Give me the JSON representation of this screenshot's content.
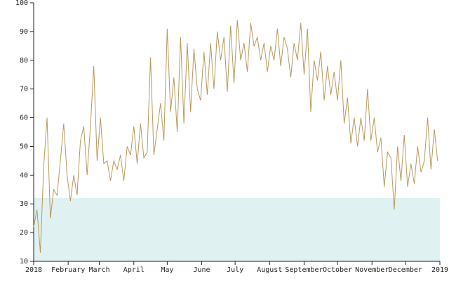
{
  "chart_data": {
    "type": "line",
    "x": [
      0,
      3,
      6,
      9,
      12,
      15,
      18,
      21,
      24,
      27,
      30,
      33,
      36,
      39,
      42,
      45,
      48,
      51,
      54,
      57,
      60,
      63,
      66,
      69,
      72,
      75,
      78,
      81,
      84,
      87,
      90,
      93,
      96,
      99,
      102,
      105,
      108,
      111,
      114,
      117,
      120,
      123,
      126,
      129,
      132,
      135,
      138,
      141,
      144,
      147,
      150,
      153,
      156,
      159,
      162,
      165,
      168,
      171,
      174,
      177,
      180,
      183,
      186,
      189,
      192,
      195,
      198,
      201,
      204,
      207,
      210,
      213,
      216,
      219,
      222,
      225,
      228,
      231,
      234,
      237,
      240,
      243,
      246,
      249,
      252,
      255,
      258,
      261,
      264,
      267,
      270,
      273,
      276,
      279,
      282,
      285,
      288,
      291,
      294,
      297,
      300,
      303,
      306,
      309,
      312,
      315,
      318,
      321,
      324,
      327,
      330,
      333,
      336,
      339,
      342,
      345,
      348,
      351,
      354,
      357,
      360,
      363
    ],
    "series": [
      {
        "color": "#b8995a",
        "values": [
          22,
          28,
          13,
          43,
          60,
          25,
          35,
          33,
          45,
          58,
          40,
          31,
          40,
          33,
          52,
          57,
          40,
          57,
          78,
          45,
          60,
          44,
          45,
          38,
          45,
          42,
          47,
          38,
          50,
          47,
          57,
          44,
          58,
          46,
          48,
          81,
          47,
          56,
          65,
          52,
          91,
          62,
          74,
          55,
          88,
          58,
          86,
          62,
          84,
          70,
          66,
          83,
          68,
          86,
          70,
          90,
          80,
          88,
          69,
          92,
          72,
          94,
          80,
          86,
          76,
          93,
          85,
          88,
          80,
          86,
          76,
          85,
          80,
          91,
          78,
          88,
          84,
          74,
          86,
          80,
          93,
          75,
          91,
          62,
          80,
          73,
          83,
          66,
          78,
          68,
          76,
          66,
          80,
          58,
          67,
          51,
          60,
          50,
          60,
          52,
          70,
          52,
          60,
          48,
          53,
          36,
          48,
          46,
          28,
          50,
          38,
          54,
          36,
          44,
          37,
          50,
          41,
          45,
          60,
          42,
          56,
          45
        ]
      }
    ],
    "shaded_range": [
      10,
      32
    ],
    "shaded_color": "#dff1f1",
    "xlim": [
      0,
      365
    ],
    "xticks": [
      {
        "value": 0,
        "label": "2018"
      },
      {
        "value": 31,
        "label": "February"
      },
      {
        "value": 59,
        "label": "March"
      },
      {
        "value": 90,
        "label": "April"
      },
      {
        "value": 120,
        "label": "May"
      },
      {
        "value": 151,
        "label": "June"
      },
      {
        "value": 181,
        "label": "July"
      },
      {
        "value": 212,
        "label": "August"
      },
      {
        "value": 243,
        "label": "September"
      },
      {
        "value": 273,
        "label": "October"
      },
      {
        "value": 304,
        "label": "November"
      },
      {
        "value": 334,
        "label": "December"
      },
      {
        "value": 365,
        "label": "2019"
      }
    ],
    "ylim": [
      10,
      100
    ],
    "yticks": [
      10,
      20,
      30,
      40,
      50,
      60,
      70,
      80,
      90,
      100
    ]
  }
}
